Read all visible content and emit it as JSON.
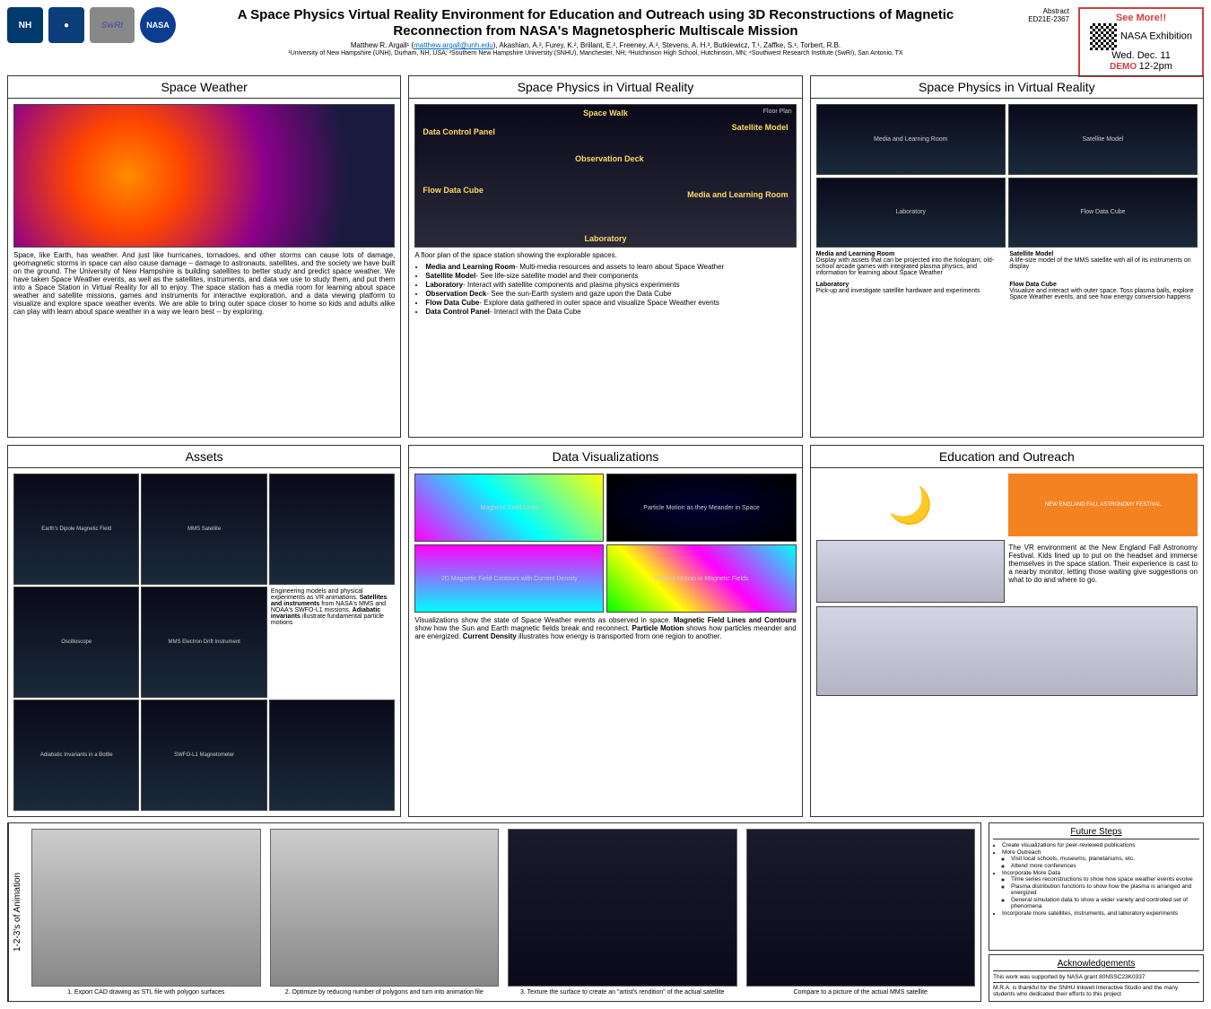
{
  "header": {
    "logos": [
      "NH",
      "●",
      "SwRI",
      "NASA"
    ],
    "title": "A Space Physics Virtual Reality Environment for Education and Outreach using 3D Reconstructions of Magnetic Reconnection from NASA's Magnetospheric Multiscale Mission",
    "lead_author": "Matthew R. Argall¹",
    "email": "matthew.argall@unh.edu",
    "authors_rest": ", Akashian, A.², Furey, K.², Brillant, E.², Freeney, A.², Stevens, A. H.³, Butkiewicz, T.¹, Zaffke, S.¹, Torbert, R.B.",
    "affiliations": "¹University of New Hampshire (UNH), Durham, NH, USA; ²Southern New Hampshire University (SNHU), Manchester, NH; ³Hutchinson High School, Hutchinson, MN; ⁴Southwest Research Institute (SwRI), San Antonio, TX",
    "abstract_label": "Abstract",
    "abstract_id": "ED21E-2367",
    "promo": {
      "see_more": "See More!!",
      "event": "NASA Exhibition",
      "date": "Wed. Dec. 11",
      "time": "12-2pm",
      "demo": "DEMO"
    }
  },
  "panels": {
    "space_weather": {
      "title": "Space Weather",
      "text": "Space, like Earth, has weather. And just like hurricanes, tornadoes, and other storms can cause lots of damage, geomagnetic storms in space can also cause damage – damage to astronauts, satellites, and the society we have built on the ground. The University of New Hampshire is building satellites to better study and predict space weather. We have taken Space Weather events, as well as the satellites, instruments, and data we use to study them, and put them into a Space Station in Virtual Reality for all to enjoy. The space station has a media room for learning about space weather and satellite missions, games and instruments for interactive exploration, and a data viewing platform to visualize and explore space weather events. We are able to bring outer space closer to home so kids and adults alike can play with learn about space weather in a way we learn best -- by exploring."
    },
    "vr1": {
      "title": "Space Physics in Virtual Reality",
      "floorplan_caption": "Floor Plan",
      "labels": {
        "space_walk": "Space Walk",
        "data_control": "Data Control Panel",
        "satellite_model": "Satellite Model",
        "observation_deck": "Observation Deck",
        "flow_data_cube": "Flow Data Cube",
        "media_room": "Media and Learning Room",
        "laboratory": "Laboratory"
      },
      "intro": "A floor plan of the space station showing the explorable spaces.",
      "bullets": [
        "<b>Media and Learning Room</b>- Multi-media resources and assets to learn about Space Weather",
        "<b>Satellite Model</b>- See life-size satellite model and their components",
        "<b>Laboratory</b>- Interact with satellite components and plasma physics experiments",
        "<b>Observation Deck</b>- See the sun-Earth system and gaze upon the Data Cube",
        "<b>Flow Data Cube</b>- Explore data gathered in outer space and visualize Space Weather events",
        "<b>Data Control Panel</b>- Interact with the Data Cube"
      ]
    },
    "vr2": {
      "title": "Space Physics in Virtual Reality",
      "tiles": [
        "Media and Learning Room",
        "Satellite Model",
        "Laboratory",
        "Flow Data Cube"
      ],
      "descs": [
        {
          "h": "Media and Learning Room",
          "t": "Display with assets that can be projected into the hologram; old-school arcade games with integrated plasma physics, and information for learning about Space Weather"
        },
        {
          "h": "Satellite Model",
          "t": "A life-size model of the MMS satellite with all of its instruments on display"
        },
        {
          "h": "Laboratory",
          "t": "Pick-up and investigate satellite hardware and experiments"
        },
        {
          "h": "Flow Data Cube",
          "t": "Visualize and interact with outer space. Toss plasma balls, explore Space Weather events, and see how energy conversion happens"
        }
      ]
    },
    "assets": {
      "title": "Assets",
      "tiles": [
        "Earth's Dipole Magnetic Field",
        "MMS Satellite",
        "",
        "Oscilloscope",
        "MMS Electron Drift Instrument",
        "Engineering models and physical experiments as VR animations. <b>Satellites and instruments</b> from NASA's MMS and NOAA's SWFO-L1 missions. <b>Adiabatic invariants</b> illustrate fundamental particle motions",
        "Adiabatic Invariants in a Bottle",
        "SWFO-L1 Magnetometer",
        ""
      ]
    },
    "dataviz": {
      "title": "Data Visualizations",
      "tiles": [
        "Magnetic Field Lines",
        "Particle Motion as they Meander in Space",
        "2D Magnetic Field Contours with Current Density",
        "Particle Motion in Magnetic Fields"
      ],
      "text": "Visualizations show the state of Space Weather events as observed in space. <b>Magnetic Field Lines and Contours</b> show how the Sun and Earth magnetic fields break and reconnect. <b>Particle Motion</b> shows how particles meander and are energized. <b>Current Density</b> illustrates how energy is transported from one region to another."
    },
    "outreach": {
      "title": "Education and Outreach",
      "festival": "NEW ENGLAND FALL ASTRONOMY FESTIVAL",
      "text": "The VR environment at the New England Fall Astronomy Festival. Kids lined up to put on the headset and immerse themselves in the space station. Their experience is cast to a nearby monitor, letting those waiting give suggestions on what to do and where to go."
    }
  },
  "animation": {
    "label": "1-2-3's of Animation",
    "steps": [
      "1. Export CAD drawing as STL file with polygon surfaces",
      "2. Optimize by reducing number of polygons and turn into animation file",
      "3. Texture the surface to create an \"artist's rendition\" of the actual satellite",
      "Compare to a picture of the actual MMS satellite"
    ]
  },
  "future": {
    "title": "Future Steps",
    "bullets": [
      "Create visualizations for peer-reviewed publications",
      "More Outreach<ul><li>Visit local schools, museums, planetariums, etc.</li><li>Attend more conferences</li></ul>",
      "Incorporate More Data<ul><li>Time series reconstructions to show how space weather events evolve</li><li>Plasma distribution functions to show how the plasma is arranged and energized</li><li>General simulation data to show a wider variety and controlled set of phenomena</li></ul>",
      "Incorporate more satellites, instruments, and laboratory experiments"
    ]
  },
  "ack": {
    "title": "Acknowledgements",
    "lines": [
      "This work was supported by NASA grant 80NSSC23K0337",
      "M.R.A. is thankful for the SNHU Inkwell Interactive Studio and the many students who dedicated their efforts to this project"
    ]
  }
}
